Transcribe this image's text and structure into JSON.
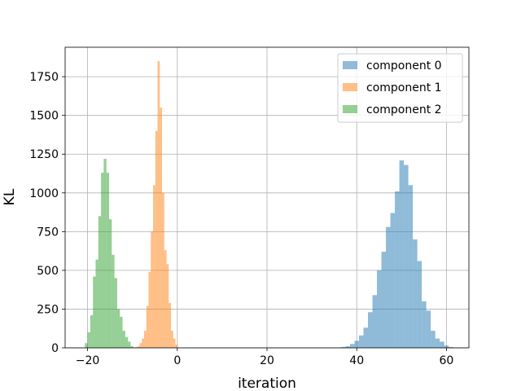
{
  "chart_data": {
    "type": "bar",
    "xlabel": "iteration",
    "ylabel": "KL",
    "xlim": [
      -25,
      65
    ],
    "ylim": [
      0,
      1940
    ],
    "xticks": [
      -20,
      0,
      20,
      40,
      60
    ],
    "yticks": [
      0,
      250,
      500,
      750,
      1000,
      1250,
      1500,
      1750
    ],
    "xtick_labels": [
      "−20",
      "0",
      "20",
      "40",
      "60"
    ],
    "ytick_labels": [
      "0",
      "250",
      "500",
      "750",
      "1000",
      "1250",
      "1500",
      "1750"
    ],
    "grid": true,
    "legend_position": "top-right",
    "colors": [
      "#1f77b4",
      "#ff7f0e",
      "#2ca02c"
    ],
    "alpha": 0.5,
    "series": [
      {
        "name": "component 0",
        "bins": [
          [
            36.5,
            37.5,
            5
          ],
          [
            37.5,
            38.5,
            10
          ],
          [
            38.5,
            39.5,
            25
          ],
          [
            39.5,
            40.5,
            45
          ],
          [
            40.5,
            41.5,
            80
          ],
          [
            41.5,
            42.5,
            130
          ],
          [
            42.5,
            43.5,
            230
          ],
          [
            43.5,
            44.5,
            340
          ],
          [
            44.5,
            45.5,
            500
          ],
          [
            45.5,
            46.5,
            620
          ],
          [
            46.5,
            47.5,
            780
          ],
          [
            47.5,
            48.5,
            870
          ],
          [
            48.5,
            49.5,
            1010
          ],
          [
            49.5,
            50.5,
            1210
          ],
          [
            50.5,
            51.5,
            1180
          ],
          [
            51.5,
            52.5,
            1050
          ],
          [
            52.5,
            53.5,
            700
          ],
          [
            53.5,
            54.5,
            560
          ],
          [
            54.5,
            55.5,
            300
          ],
          [
            55.5,
            56.5,
            240
          ],
          [
            56.5,
            57.5,
            110
          ],
          [
            57.5,
            58.5,
            60
          ],
          [
            58.5,
            59.5,
            40
          ],
          [
            59.5,
            60.5,
            15
          ],
          [
            60.5,
            61.5,
            5
          ]
        ]
      },
      {
        "name": "component 1",
        "bins": [
          [
            -9.4,
            -8.9,
            5
          ],
          [
            -8.9,
            -8.4,
            10
          ],
          [
            -8.4,
            -7.9,
            30
          ],
          [
            -7.9,
            -7.4,
            60
          ],
          [
            -7.4,
            -6.9,
            110
          ],
          [
            -6.9,
            -6.4,
            270
          ],
          [
            -6.4,
            -5.9,
            490
          ],
          [
            -5.9,
            -5.4,
            750
          ],
          [
            -5.4,
            -4.9,
            1050
          ],
          [
            -4.9,
            -4.4,
            1400
          ],
          [
            -4.4,
            -3.9,
            1850
          ],
          [
            -3.9,
            -3.4,
            1550
          ],
          [
            -3.4,
            -2.9,
            1000
          ],
          [
            -2.9,
            -2.4,
            630
          ],
          [
            -2.4,
            -1.9,
            540
          ],
          [
            -1.9,
            -1.4,
            290
          ],
          [
            -1.4,
            -0.9,
            110
          ],
          [
            -0.9,
            -0.4,
            60
          ],
          [
            -0.4,
            0.1,
            20
          ]
        ]
      },
      {
        "name": "component 2",
        "bins": [
          [
            -20.6,
            -20.0,
            30
          ],
          [
            -20.0,
            -19.4,
            100
          ],
          [
            -19.4,
            -18.8,
            210
          ],
          [
            -18.8,
            -18.2,
            460
          ],
          [
            -18.2,
            -17.6,
            570
          ],
          [
            -17.6,
            -17.0,
            850
          ],
          [
            -17.0,
            -16.4,
            1130
          ],
          [
            -16.4,
            -15.8,
            1220
          ],
          [
            -15.8,
            -15.2,
            1130
          ],
          [
            -15.2,
            -14.6,
            830
          ],
          [
            -14.6,
            -14.0,
            600
          ],
          [
            -14.0,
            -13.4,
            450
          ],
          [
            -13.4,
            -12.8,
            250
          ],
          [
            -12.8,
            -12.2,
            200
          ],
          [
            -12.2,
            -11.6,
            110
          ],
          [
            -11.6,
            -11.0,
            70
          ],
          [
            -11.0,
            -10.4,
            40
          ],
          [
            -10.4,
            -9.8,
            10
          ]
        ]
      }
    ]
  }
}
